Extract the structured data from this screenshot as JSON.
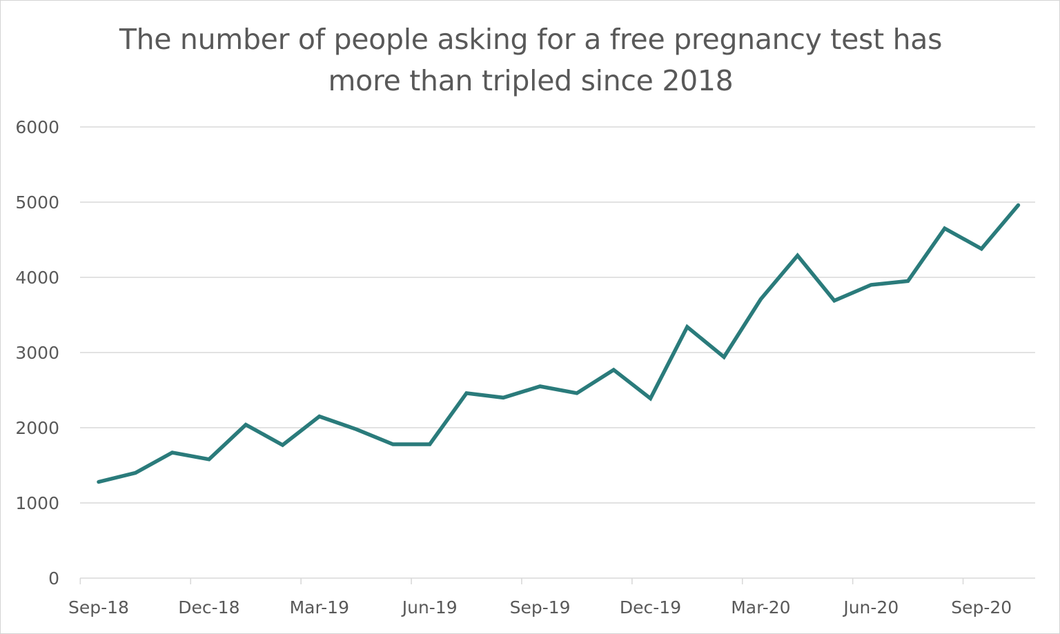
{
  "chart_data": {
    "type": "line",
    "title_lines": [
      "The number of people asking for a free pregnancy test has",
      "more than tripled since 2018"
    ],
    "xlabel": "",
    "ylabel": "",
    "ylim": [
      0,
      6000
    ],
    "y_ticks": [
      "0",
      "1000",
      "2000",
      "3000",
      "4000",
      "5000",
      "6000"
    ],
    "x_ticks": [
      "Sep-18",
      "Dec-18",
      "Mar-19",
      "Jun-19",
      "Sep-19",
      "Dec-19",
      "Mar-20",
      "Jun-20",
      "Sep-20"
    ],
    "grid": true,
    "legend": "none",
    "line_color": "#2a7b7b",
    "gridline_color": "#d9d9d9",
    "x": [
      "Sep-18",
      "Oct-18",
      "Nov-18",
      "Dec-18",
      "Jan-19",
      "Feb-19",
      "Mar-19",
      "Apr-19",
      "May-19",
      "Jun-19",
      "Jul-19",
      "Aug-19",
      "Sep-19",
      "Oct-19",
      "Nov-19",
      "Dec-19",
      "Jan-20",
      "Feb-20",
      "Mar-20",
      "Apr-20",
      "May-20",
      "Jun-20",
      "Jul-20",
      "Aug-20",
      "Sep-20",
      "Oct-20"
    ],
    "values": [
      1280,
      1400,
      1670,
      1580,
      2040,
      1770,
      2150,
      1980,
      1780,
      1780,
      2460,
      2400,
      2550,
      2460,
      2770,
      2390,
      3340,
      2940,
      3710,
      4290,
      3690,
      3900,
      3950,
      4650,
      4380,
      4960
    ]
  }
}
